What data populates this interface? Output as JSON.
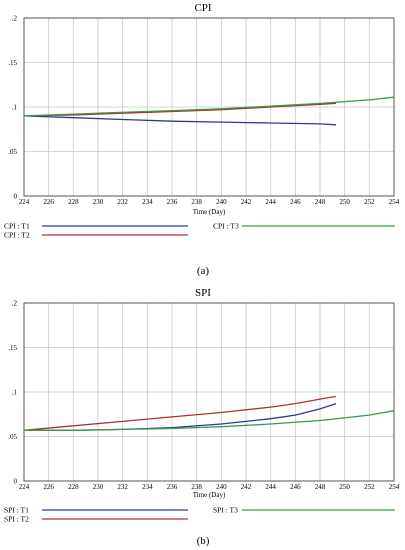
{
  "charts": [
    {
      "panel_label": "(a)"
    },
    {
      "panel_label": "(b)"
    }
  ],
  "chart_data": [
    {
      "type": "line",
      "title": "CPI",
      "xlabel": "Time (Day)",
      "ylabel": "",
      "xlim": [
        224,
        254
      ],
      "ylim": [
        0,
        0.2
      ],
      "x_ticks": [
        224,
        226,
        228,
        230,
        232,
        234,
        236,
        238,
        240,
        242,
        244,
        246,
        248,
        250,
        252,
        254
      ],
      "y_ticks": [
        0,
        0.05,
        0.1,
        0.15,
        0.2
      ],
      "y_tick_labels": [
        "0",
        ".05",
        ".1",
        ".15",
        ".2"
      ],
      "grid": true,
      "legend_position": "bottom",
      "series": [
        {
          "name": "CPI : T1",
          "color": "#2e3a8c",
          "x": [
            224,
            228,
            232,
            236,
            240,
            244,
            248,
            249.3
          ],
          "y": [
            0.09,
            0.088,
            0.086,
            0.084,
            0.083,
            0.082,
            0.081,
            0.08
          ]
        },
        {
          "name": "CPI : T2",
          "color": "#b03030",
          "x": [
            224,
            228,
            232,
            236,
            240,
            244,
            248,
            249.3
          ],
          "y": [
            0.09,
            0.091,
            0.093,
            0.095,
            0.097,
            0.1,
            0.103,
            0.104
          ]
        },
        {
          "name": "CPI : T3",
          "color": "#3a9a4a",
          "x": [
            224,
            228,
            232,
            236,
            240,
            244,
            248,
            252,
            254
          ],
          "y": [
            0.09,
            0.092,
            0.094,
            0.096,
            0.098,
            0.101,
            0.104,
            0.108,
            0.111
          ]
        }
      ]
    },
    {
      "type": "line",
      "title": "SPI",
      "xlabel": "Time (Day)",
      "ylabel": "",
      "xlim": [
        224,
        254
      ],
      "ylim": [
        0,
        0.2
      ],
      "x_ticks": [
        224,
        226,
        228,
        230,
        232,
        234,
        236,
        238,
        240,
        242,
        244,
        246,
        248,
        250,
        252,
        254
      ],
      "y_ticks": [
        0,
        0.05,
        0.1,
        0.15,
        0.2
      ],
      "y_tick_labels": [
        "0",
        ".05",
        ".1",
        ".15",
        ".2"
      ],
      "grid": true,
      "legend_position": "bottom",
      "series": [
        {
          "name": "SPI : T1",
          "color": "#2e3a8c",
          "x": [
            224,
            228,
            232,
            236,
            240,
            244,
            246,
            248,
            249.3
          ],
          "y": [
            0.057,
            0.057,
            0.058,
            0.06,
            0.064,
            0.07,
            0.074,
            0.081,
            0.087
          ]
        },
        {
          "name": "SPI : T2",
          "color": "#b03030",
          "x": [
            224,
            228,
            232,
            236,
            240,
            244,
            246,
            248,
            249.3
          ],
          "y": [
            0.057,
            0.062,
            0.067,
            0.072,
            0.077,
            0.083,
            0.087,
            0.092,
            0.095
          ]
        },
        {
          "name": "SPI : T3",
          "color": "#3a9a4a",
          "x": [
            224,
            228,
            232,
            236,
            240,
            244,
            248,
            252,
            254
          ],
          "y": [
            0.057,
            0.057,
            0.058,
            0.059,
            0.061,
            0.064,
            0.068,
            0.074,
            0.079
          ]
        }
      ]
    }
  ]
}
